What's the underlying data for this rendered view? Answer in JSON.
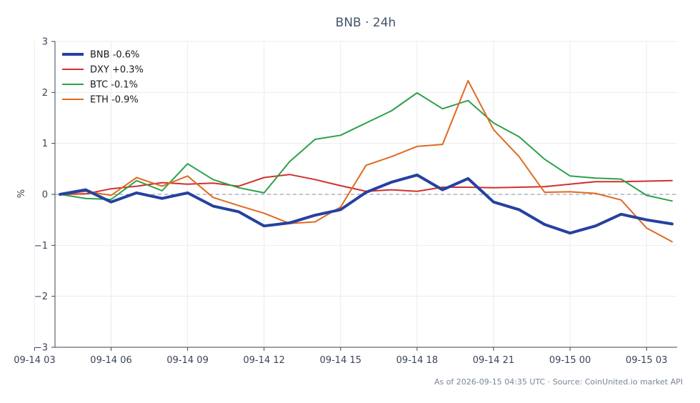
{
  "chart_data": {
    "type": "line",
    "title": "BNB · 24h",
    "ylabel": "%",
    "xlabel": "",
    "ylim": [
      -3,
      3
    ],
    "yticks": [
      3,
      2,
      1,
      0,
      -1,
      -2,
      -3
    ],
    "ytick_labels": [
      "3",
      "2",
      "1",
      "0",
      "−1",
      "−2",
      "−3"
    ],
    "x_hours": [
      0,
      1,
      2,
      3,
      4,
      5,
      6,
      7,
      8,
      9,
      10,
      11,
      12,
      13,
      14,
      15,
      16,
      17,
      18,
      19,
      20,
      21,
      22,
      23,
      24
    ],
    "x_start_hour": 4,
    "xlim": [
      3.8,
      28.2
    ],
    "xticks": [
      {
        "label": "09-14 03",
        "hour": 3
      },
      {
        "label": "09-14 06",
        "hour": 6
      },
      {
        "label": "09-14 09",
        "hour": 9
      },
      {
        "label": "09-14 12",
        "hour": 12
      },
      {
        "label": "09-14 15",
        "hour": 15
      },
      {
        "label": "09-14 18",
        "hour": 18
      },
      {
        "label": "09-14 21",
        "hour": 21
      },
      {
        "label": "09-15 00",
        "hour": 24
      },
      {
        "label": "09-15 03",
        "hour": 27
      }
    ],
    "grid": true,
    "zero_line": true,
    "legend_position": "top-left",
    "series": [
      {
        "name": "BNB -0.6%",
        "color": "#2541a0",
        "width": 4,
        "values": [
          0.0,
          0.09,
          -0.15,
          0.03,
          -0.08,
          0.03,
          -0.23,
          -0.34,
          -0.62,
          -0.56,
          -0.41,
          -0.3,
          0.04,
          0.24,
          0.38,
          0.09,
          0.31,
          -0.15,
          -0.3,
          -0.59,
          -0.76,
          -0.62,
          -0.39,
          -0.5,
          -0.58
        ]
      },
      {
        "name": "DXY +0.3%",
        "color": "#d0302f",
        "width": 2,
        "values": [
          0.0,
          0.01,
          0.11,
          0.16,
          0.23,
          0.2,
          0.22,
          0.16,
          0.33,
          0.39,
          0.29,
          0.17,
          0.06,
          0.09,
          0.06,
          0.14,
          0.14,
          0.13,
          0.14,
          0.15,
          0.2,
          0.25,
          0.25,
          0.26,
          0.27
        ]
      },
      {
        "name": "BTC -0.1%",
        "color": "#2ca14a",
        "width": 2,
        "values": [
          0.0,
          -0.08,
          -0.1,
          0.27,
          0.07,
          0.6,
          0.29,
          0.13,
          0.03,
          0.64,
          1.08,
          1.16,
          1.4,
          1.64,
          1.99,
          1.68,
          1.84,
          1.4,
          1.13,
          0.69,
          0.36,
          0.32,
          0.3,
          -0.02,
          -0.13
        ]
      },
      {
        "name": "ETH -0.9%",
        "color": "#e06a20",
        "width": 2,
        "values": [
          0.0,
          0.06,
          -0.02,
          0.33,
          0.16,
          0.36,
          -0.06,
          -0.22,
          -0.37,
          -0.57,
          -0.54,
          -0.25,
          0.57,
          0.74,
          0.94,
          0.98,
          2.23,
          1.27,
          0.74,
          0.04,
          0.05,
          0.02,
          -0.11,
          -0.66,
          -0.93
        ]
      }
    ],
    "footer": "As of 2026-09-15 04:35 UTC · Source: CoinUnited.io market API"
  }
}
